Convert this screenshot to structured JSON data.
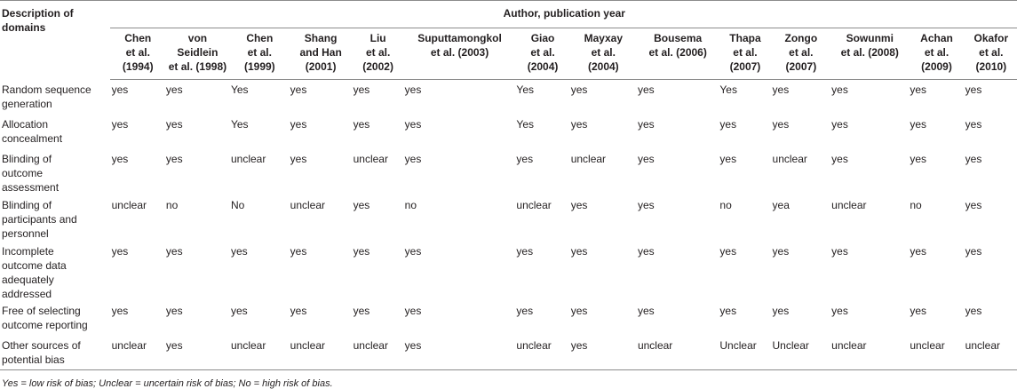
{
  "table": {
    "domain_header": "Description of domains",
    "group_header": "Author, publication year",
    "studies": [
      "Chen\net al.\n(1994)",
      "von\nSeidlein\net al. (1998)",
      "Chen\net al.\n(1999)",
      "Shang\nand Han\n(2001)",
      "Liu\net al.\n(2002)",
      "Suputtamongkol\net al. (2003)",
      "Giao\net al.\n(2004)",
      "Mayxay\net al.\n(2004)",
      "Bousema\net al. (2006)",
      "Thapa\net al.\n(2007)",
      "Zongo\net al.\n(2007)",
      "Sowunmi\net al. (2008)",
      "Achan\net al.\n(2009)",
      "Okafor\net al.\n(2010)"
    ],
    "rows": [
      {
        "domain": "Random sequence\ngeneration",
        "values": [
          "yes",
          "yes",
          "Yes",
          "yes",
          "yes",
          "yes",
          "Yes",
          "yes",
          "yes",
          "Yes",
          "yes",
          "yes",
          "yes",
          "yes"
        ]
      },
      {
        "domain": "Allocation\nconcealment",
        "values": [
          "yes",
          "yes",
          "Yes",
          "yes",
          "yes",
          "yes",
          "Yes",
          "yes",
          "yes",
          "yes",
          "yes",
          "yes",
          "yes",
          "yes"
        ]
      },
      {
        "domain": "Blinding of\noutcome\nassessment",
        "values": [
          "yes",
          "yes",
          "unclear",
          "yes",
          "unclear",
          "yes",
          "yes",
          "unclear",
          "yes",
          "yes",
          "unclear",
          "yes",
          "yes",
          "yes"
        ]
      },
      {
        "domain": "Blinding of\nparticipants and\npersonnel",
        "values": [
          "unclear",
          "no",
          "No",
          "unclear",
          "yes",
          "no",
          "unclear",
          "yes",
          "yes",
          "no",
          "yea",
          "unclear",
          "no",
          "yes"
        ]
      },
      {
        "domain": "Incomplete\noutcome data\nadequately\naddressed",
        "values": [
          "yes",
          "yes",
          "yes",
          "yes",
          "yes",
          "yes",
          "yes",
          "yes",
          "yes",
          "yes",
          "yes",
          "yes",
          "yes",
          "yes"
        ]
      },
      {
        "domain": "Free of selecting\noutcome reporting",
        "values": [
          "yes",
          "yes",
          "yes",
          "yes",
          "yes",
          "yes",
          "yes",
          "yes",
          "yes",
          "yes",
          "yes",
          "yes",
          "yes",
          "yes"
        ]
      },
      {
        "domain": "Other sources of\npotential bias",
        "values": [
          "unclear",
          "yes",
          "unclear",
          "unclear",
          "unclear",
          "yes",
          "unclear",
          "yes",
          "unclear",
          "Unclear",
          "Unclear",
          "unclear",
          "unclear",
          "unclear"
        ]
      }
    ]
  },
  "footnote": "Yes = low risk of bias; Unclear = uncertain risk of bias; No = high risk of bias."
}
